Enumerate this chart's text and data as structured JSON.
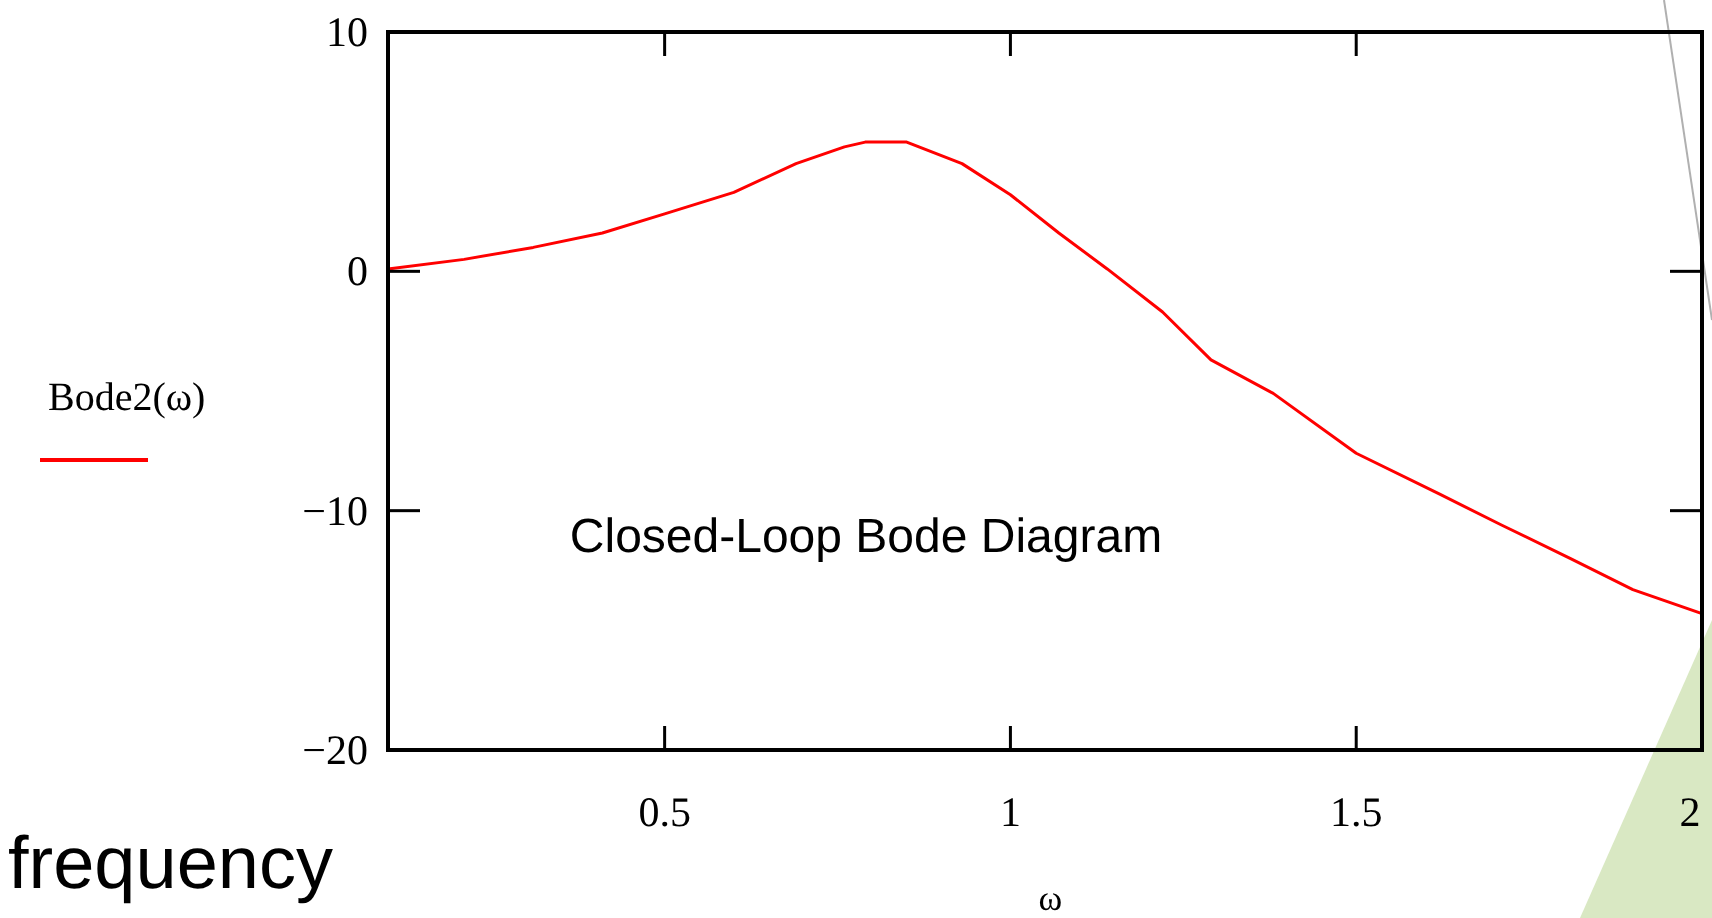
{
  "chart_data": {
    "type": "line",
    "xlabel": "ω",
    "annotations": [
      "Closed-Loop Bode Diagram",
      "frequency"
    ],
    "x": [
      0.1,
      0.21,
      0.31,
      0.41,
      0.5,
      0.6,
      0.69,
      0.76,
      0.79,
      0.85,
      0.93,
      1.0,
      1.07,
      1.14,
      1.22,
      1.29,
      1.38,
      1.5,
      1.62,
      1.71,
      1.81,
      1.9,
      2.0
    ],
    "series": [
      {
        "name": "Bode2(ω)",
        "color": "#ff0000",
        "values": [
          0.1,
          0.5,
          1.0,
          1.6,
          2.4,
          3.3,
          4.5,
          5.2,
          5.4,
          5.4,
          4.5,
          3.2,
          1.6,
          0.1,
          -1.7,
          -3.7,
          -5.1,
          -7.6,
          -9.3,
          -10.6,
          -12,
          -13.3,
          -14.3
        ]
      }
    ],
    "xlim": [
      0.1,
      2
    ],
    "xticks": [
      0.5,
      1,
      1.5,
      2
    ],
    "ylim": [
      -20,
      10
    ],
    "yticks": [
      -20,
      -10,
      0,
      10
    ],
    "legend": "left",
    "grid": false,
    "marker": "none",
    "line_style": "solid"
  }
}
